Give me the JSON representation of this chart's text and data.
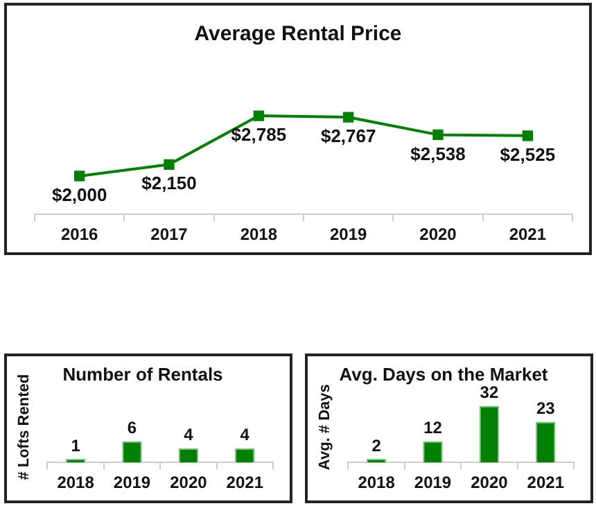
{
  "chart_data": [
    {
      "type": "line",
      "title": "Average Rental Price",
      "categories": [
        "2016",
        "2017",
        "2018",
        "2019",
        "2020",
        "2021"
      ],
      "values": [
        2000,
        2150,
        2785,
        2767,
        2538,
        2525
      ],
      "value_labels": [
        "$2,000",
        "$2,150",
        "$2,785",
        "$2,767",
        "$2,538",
        "$2,525"
      ],
      "color": "#008000",
      "marker": "square",
      "grid": false,
      "legend": false,
      "tick_labels": "x"
    },
    {
      "type": "bar",
      "title": "Number of Rentals",
      "ylabel": "# Lofts Rented",
      "categories": [
        "2018",
        "2019",
        "2020",
        "2021"
      ],
      "values": [
        1,
        6,
        4,
        4
      ],
      "color": "#008000",
      "data_labels": true,
      "grid": false,
      "legend": false,
      "tick_labels": "x"
    },
    {
      "type": "bar",
      "title": "Avg. Days on the Market",
      "ylabel": "Avg. # Days",
      "categories": [
        "2018",
        "2019",
        "2020",
        "2021"
      ],
      "values": [
        2,
        12,
        32,
        23
      ],
      "color": "#008000",
      "data_labels": true,
      "grid": false,
      "legend": false,
      "tick_labels": "x"
    }
  ]
}
